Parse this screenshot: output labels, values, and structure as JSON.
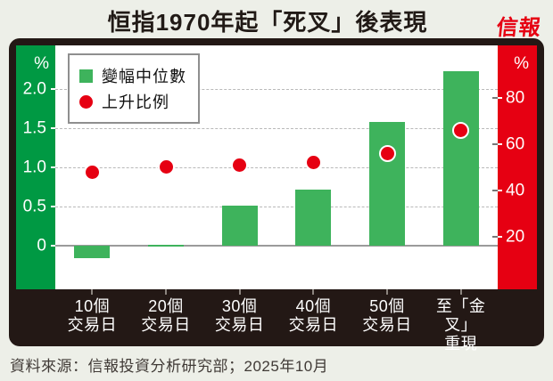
{
  "header": {
    "title": "恒指1970年起「死叉」後表現",
    "logo": "信報"
  },
  "legend": {
    "items": [
      {
        "label": "變幅中位數",
        "marker": "square",
        "color": "#3eb35c"
      },
      {
        "label": "上升比例",
        "marker": "circle",
        "color": "#e60012"
      }
    ]
  },
  "chart_data": {
    "type": "bar",
    "title": "恒指1970年起「死叉」後表現",
    "categories": [
      "10個\n交易日",
      "20個\n交易日",
      "30個\n交易日",
      "40個\n交易日",
      "50個\n交易日",
      "至「金叉」\n重現"
    ],
    "series": [
      {
        "name": "變幅中位數",
        "type": "bar",
        "axis": "left",
        "color": "#3eb35c",
        "values": [
          -0.15,
          0.02,
          0.51,
          0.72,
          1.58,
          2.22
        ]
      },
      {
        "name": "上升比例",
        "type": "scatter",
        "axis": "right",
        "color": "#e60012",
        "values": [
          48,
          50,
          51,
          52,
          56,
          66
        ]
      }
    ],
    "left_axis": {
      "unit": "%",
      "tick_values": [
        0,
        0.5,
        1.0,
        1.5,
        2.0
      ],
      "tick_labels": [
        "0",
        "0.5",
        "1.0",
        "1.5",
        "2.0"
      ],
      "range": [
        -0.55,
        2.55
      ],
      "grid_ticks": [
        0.5,
        1.0,
        1.5,
        2.0
      ]
    },
    "right_axis": {
      "unit": "%",
      "tick_values": [
        20,
        40,
        60,
        80
      ],
      "tick_labels": [
        "20",
        "40",
        "60",
        "80"
      ],
      "range": [
        -2.6,
        102.4
      ]
    },
    "grid": "horizontal dashed at left-axis ticks, solid zero line",
    "legend_position": "top-left inside plot"
  },
  "source": "資料來源：信報投資分析研究部；2025年10月",
  "colors": {
    "background": "#edefe8",
    "frame": "#231815",
    "left_axis_strip": "#009943",
    "right_axis_strip": "#e60012",
    "bar_green": "#3eb35c",
    "dot_red": "#e60012",
    "logo_red": "#e60012",
    "axis_text": "#ffffff",
    "xlabel_text": "#ffffff"
  }
}
